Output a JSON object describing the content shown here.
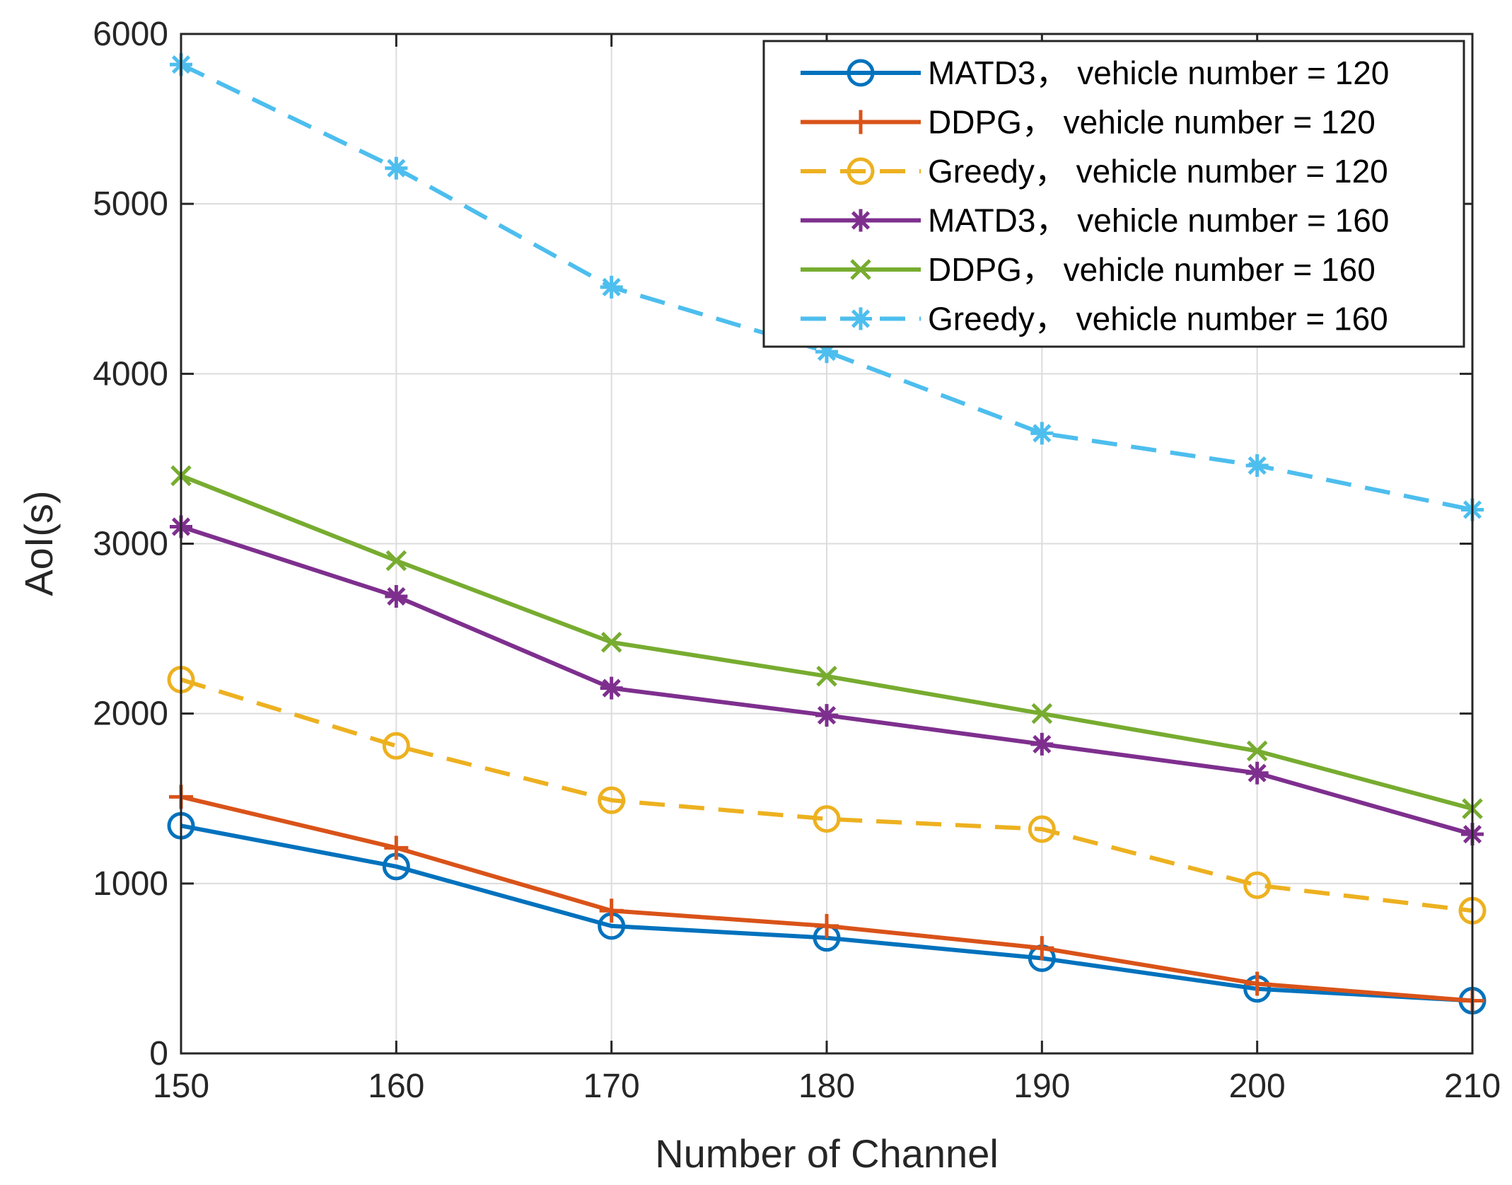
{
  "chart_data": {
    "type": "line",
    "title": "",
    "xlabel": "Number of Channel",
    "ylabel": "AoI(s)",
    "x": [
      150,
      160,
      170,
      180,
      190,
      200,
      210
    ],
    "xlim": [
      150,
      210
    ],
    "ylim": [
      0,
      6000
    ],
    "xticks": [
      "150",
      "160",
      "170",
      "180",
      "190",
      "200",
      "210"
    ],
    "yticks": [
      "0",
      "1000",
      "2000",
      "3000",
      "4000",
      "5000",
      "6000"
    ],
    "grid": true,
    "legend_position": "top-right",
    "series": [
      {
        "name": "MATD3， vehicle number = 120",
        "color": "#0072BD",
        "dash": "solid",
        "marker": "circle",
        "values": [
          1340,
          1100,
          750,
          680,
          560,
          380,
          310
        ]
      },
      {
        "name": "DDPG，  vehicle number = 120",
        "color": "#D95319",
        "dash": "solid",
        "marker": "plus",
        "values": [
          1510,
          1210,
          840,
          750,
          620,
          410,
          310
        ]
      },
      {
        "name": "Greedy， vehicle number = 120",
        "color": "#EDB120",
        "dash": "dashed",
        "marker": "circle",
        "values": [
          2200,
          1810,
          1490,
          1380,
          1320,
          990,
          840
        ]
      },
      {
        "name": "MATD3， vehicle number = 160",
        "color": "#7E2F8E",
        "dash": "solid",
        "marker": "asterisk",
        "values": [
          3100,
          2690,
          2150,
          1990,
          1820,
          1650,
          1290
        ]
      },
      {
        "name": "DDPG， vehicle number = 160",
        "color": "#77AC30",
        "dash": "solid",
        "marker": "x",
        "values": [
          3400,
          2900,
          2420,
          2220,
          2000,
          1780,
          1440
        ]
      },
      {
        "name": "Greedy， vehicle number = 160",
        "color": "#4DBEEE",
        "dash": "dashed",
        "marker": "asterisk",
        "values": [
          5820,
          5210,
          4510,
          4130,
          3650,
          3460,
          3200
        ]
      }
    ]
  }
}
